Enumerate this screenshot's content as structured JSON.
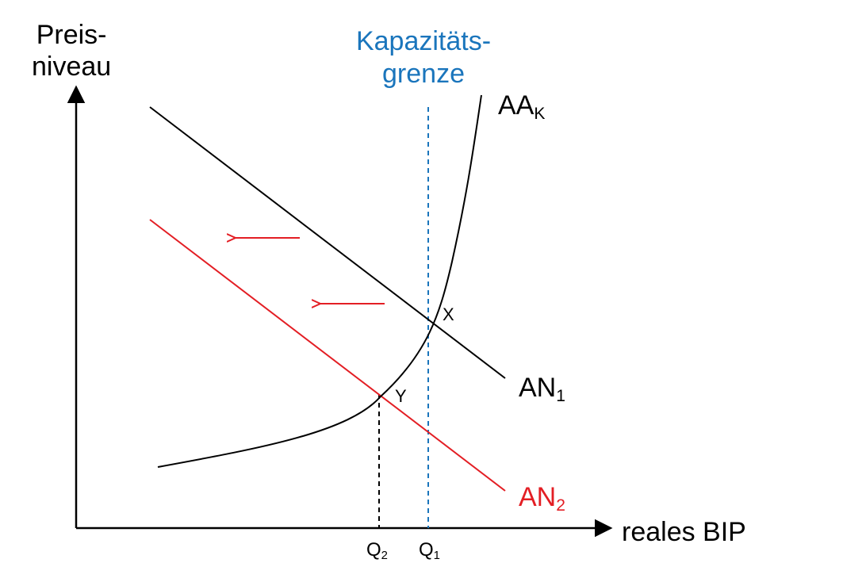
{
  "y_axis": {
    "label_line1": "Preis-",
    "label_line2": "niveau"
  },
  "x_axis": {
    "label": "reales BIP"
  },
  "capacity": {
    "label_line1": "Kapazitäts-",
    "label_line2": "grenze",
    "color": "#1a75bc"
  },
  "curves": {
    "aa": {
      "main": "AA",
      "sub": "K",
      "color": "#000000"
    },
    "an1": {
      "main": "AN",
      "sub": "1",
      "color": "#000000"
    },
    "an2": {
      "main": "AN",
      "sub": "2",
      "color": "#e31e24"
    }
  },
  "points": {
    "x": "X",
    "y": "Y"
  },
  "ticks": {
    "q2": {
      "main": "Q",
      "sub": "2"
    },
    "q1": {
      "main": "Q",
      "sub": "1"
    }
  },
  "shift_arrow_color": "#e31e24"
}
